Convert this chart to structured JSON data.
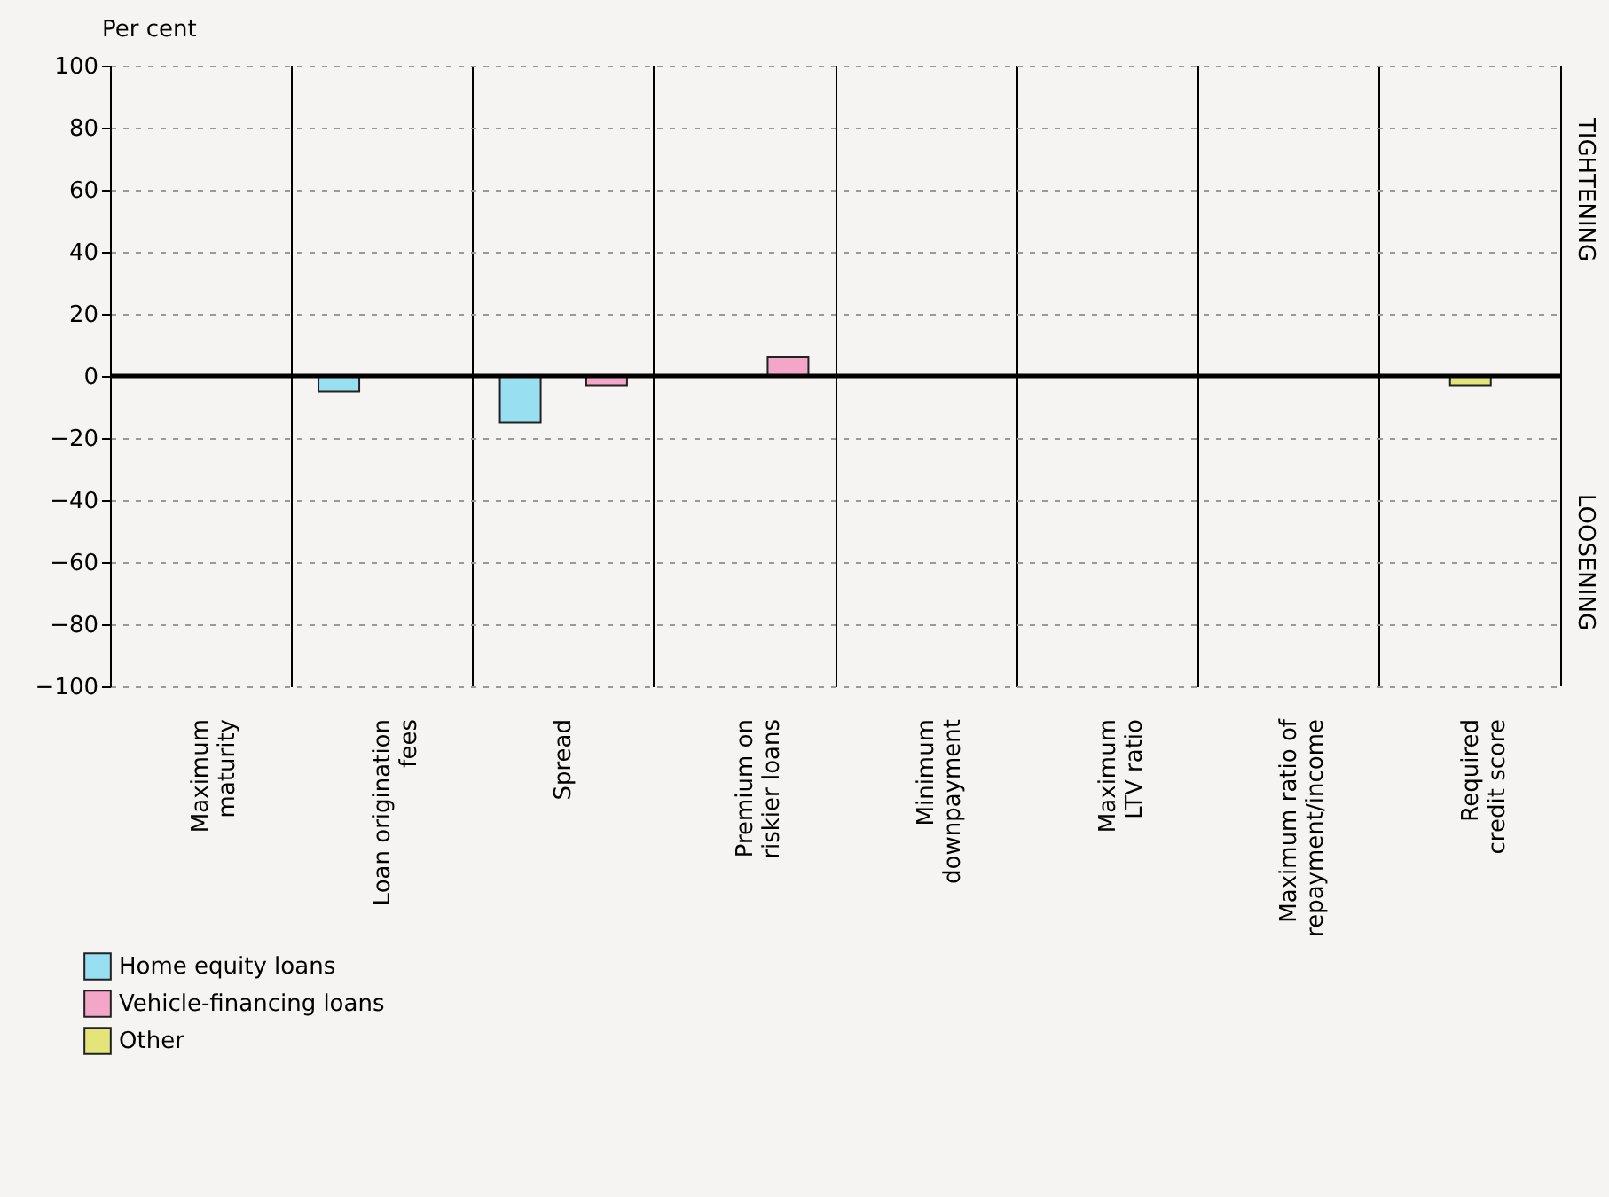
{
  "chart_data": {
    "type": "bar",
    "ylabel": "Per cent",
    "categories": [
      "Maximum\nmaturity",
      "Loan origination\nfees",
      "Spread",
      "Premium on\nriskier loans",
      "Minimum\ndownpayment",
      "Maximum\nLTV ratio",
      "Maximum ratio of\nrepayment/income",
      "Required\ncredit score"
    ],
    "series": [
      {
        "name": "Home equity loans",
        "color": "#99dff2",
        "values": [
          null,
          -5,
          -15,
          null,
          null,
          null,
          null,
          null
        ]
      },
      {
        "name": "Vehicle-financing loans",
        "color": "#f4a6c8",
        "values": [
          null,
          null,
          -3,
          6,
          null,
          null,
          null,
          null
        ]
      },
      {
        "name": "Other",
        "color": "#e3e47a",
        "values": [
          null,
          null,
          null,
          null,
          null,
          null,
          null,
          -3
        ]
      }
    ],
    "ylim": [
      -100,
      100
    ],
    "yticks": [
      -100,
      -80,
      -60,
      -40,
      -20,
      0,
      20,
      40,
      60,
      80,
      100
    ],
    "ref_lines": [
      {
        "axis": "y",
        "value": 0
      }
    ],
    "annotations": [
      "TIGHTENING",
      "LOOSENING"
    ],
    "grid": "y",
    "legend": "bottom left"
  }
}
